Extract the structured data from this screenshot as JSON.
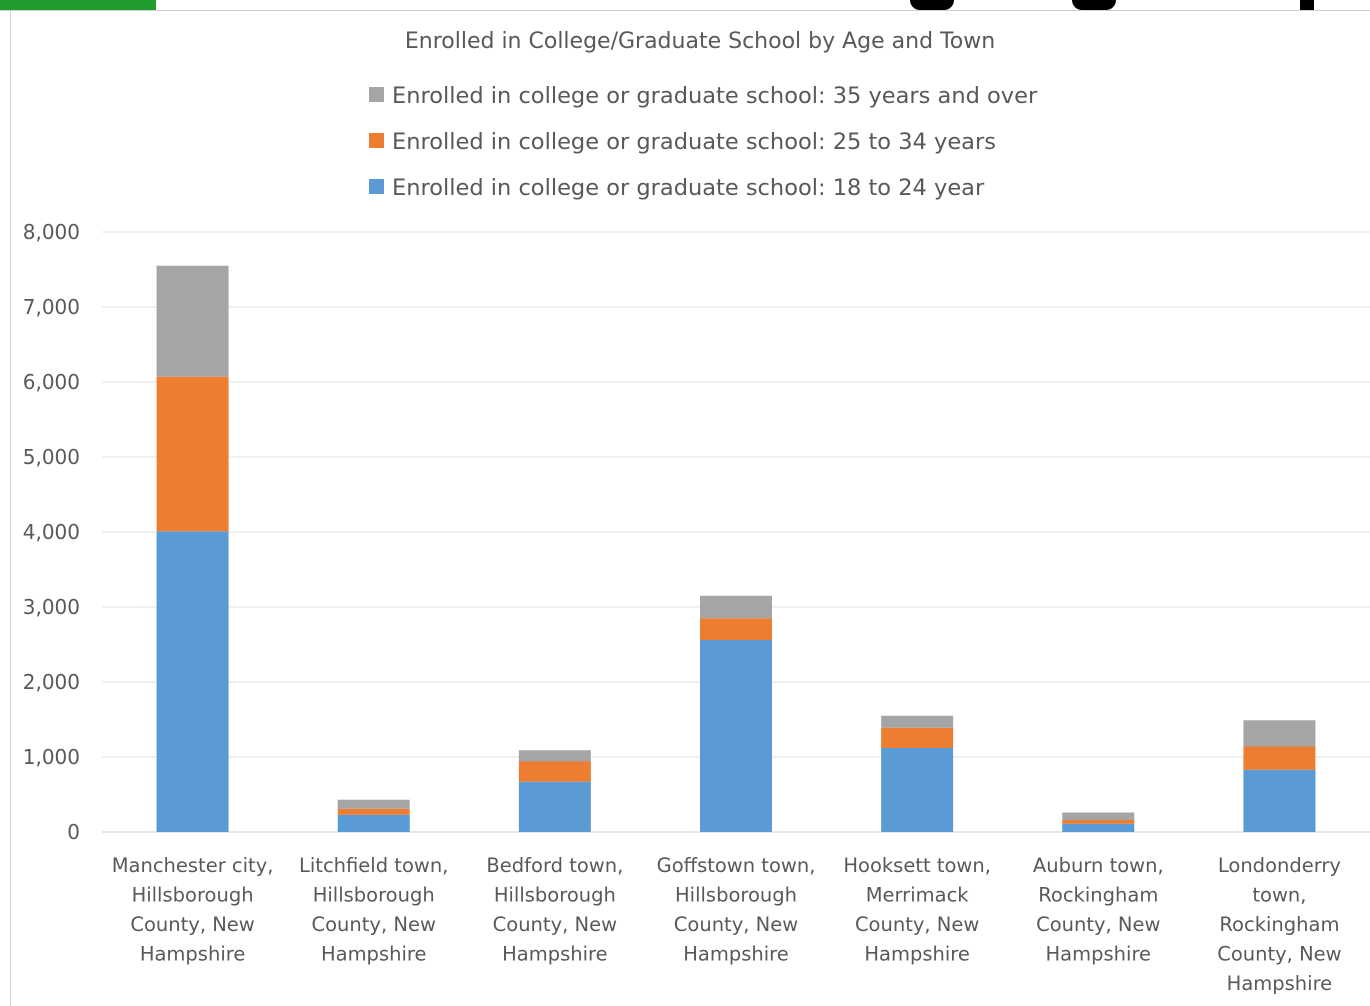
{
  "chart_data": {
    "type": "bar",
    "stacked": true,
    "title": "Enrolled in College/Graduate School by Age and Town",
    "xlabel": "",
    "ylabel": "",
    "ylim": [
      0,
      8000
    ],
    "yticks": [
      "0",
      "1,000",
      "2,000",
      "3,000",
      "4,000",
      "5,000",
      "6,000",
      "7,000",
      "8,000"
    ],
    "grid": true,
    "legend_position": "top",
    "categories": [
      [
        "Manchester city,",
        "Hillsborough",
        "County, New",
        "Hampshire"
      ],
      [
        "Litchfield town,",
        "Hillsborough",
        "County, New",
        "Hampshire"
      ],
      [
        "Bedford town,",
        "Hillsborough",
        "County, New",
        "Hampshire"
      ],
      [
        "Goffstown town,",
        "Hillsborough",
        "County, New",
        "Hampshire"
      ],
      [
        "Hooksett town,",
        "Merrimack",
        "County, New",
        "Hampshire"
      ],
      [
        "Auburn town,",
        "Rockingham",
        "County, New",
        "Hampshire"
      ],
      [
        "Londonderry",
        "town,",
        "Rockingham",
        "County, New",
        "Hampshire"
      ]
    ],
    "series": [
      {
        "name": "Enrolled in college or graduate school: 18 to 24 year",
        "color": "#5b9bd5",
        "values": [
          4010,
          230,
          670,
          2560,
          1120,
          110,
          830
        ]
      },
      {
        "name": "Enrolled in college or graduate school: 25 to 34 years",
        "color": "#ed7d31",
        "values": [
          2060,
          80,
          270,
          290,
          270,
          50,
          310
        ]
      },
      {
        "name": "Enrolled in college or graduate school: 35 years and over",
        "color": "#a5a5a5",
        "values": [
          1480,
          120,
          150,
          300,
          160,
          100,
          350
        ]
      }
    ]
  },
  "ui": {
    "header_accent": "#1f9e2f"
  }
}
